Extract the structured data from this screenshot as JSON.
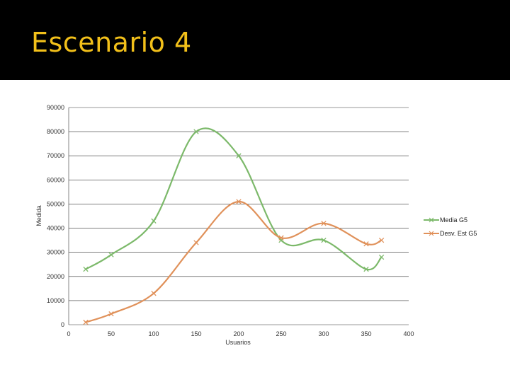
{
  "slide": {
    "title": "Escenario 4"
  },
  "colors": {
    "title_bar": "#000000",
    "title_text": "#f2c01a",
    "series_media": "#7cb96a",
    "series_desv": "#e0915a",
    "grid": "#333333"
  },
  "chart_data": {
    "type": "line",
    "title": "",
    "xlabel": "Usuarios",
    "ylabel": "Medida",
    "xlim": [
      0,
      400
    ],
    "ylim": [
      0,
      90000
    ],
    "x_ticks": [
      0,
      50,
      100,
      150,
      200,
      250,
      300,
      350,
      400
    ],
    "y_ticks": [
      0,
      10000,
      20000,
      30000,
      40000,
      50000,
      60000,
      70000,
      80000,
      90000
    ],
    "grid": "horizontal",
    "smooth": true,
    "legend_position": "right",
    "series": [
      {
        "name": "Media G5",
        "x": [
          20,
          50,
          100,
          150,
          200,
          250,
          300,
          350,
          368
        ],
        "y": [
          23000,
          29000,
          43000,
          80000,
          70000,
          35000,
          35000,
          23000,
          28000
        ]
      },
      {
        "name": "Desv. Est G5",
        "x": [
          20,
          50,
          100,
          150,
          200,
          250,
          300,
          350,
          368
        ],
        "y": [
          1000,
          4500,
          13000,
          34000,
          51000,
          36000,
          42000,
          33500,
          35000
        ]
      }
    ]
  }
}
